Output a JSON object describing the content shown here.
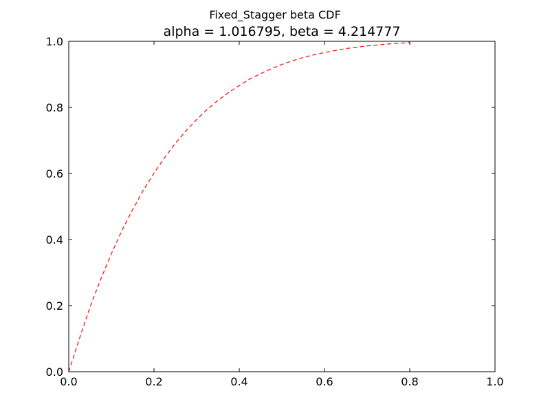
{
  "chart_data": {
    "type": "line",
    "suptitle": "Fixed_Stagger beta CDF",
    "title": "alpha = 1.016795, beta = 4.214777",
    "xlabel": "",
    "ylabel": "",
    "xlim": [
      0.0,
      1.0
    ],
    "ylim": [
      0.0,
      1.0
    ],
    "x_ticks": [
      "0.0",
      "0.2",
      "0.4",
      "0.6",
      "0.8",
      "1.0"
    ],
    "y_ticks": [
      "0.0",
      "0.2",
      "0.4",
      "0.6",
      "0.8",
      "1.0"
    ],
    "grid": false,
    "legend": "none",
    "x_range_plotted": [
      0.0,
      0.8
    ],
    "series": [
      {
        "line_style": "dashed",
        "color": "#ff0000",
        "x": [
          0.0,
          0.025,
          0.05,
          0.075,
          0.1,
          0.125,
          0.15,
          0.175,
          0.2,
          0.225,
          0.25,
          0.275,
          0.3,
          0.325,
          0.35,
          0.375,
          0.4,
          0.425,
          0.45,
          0.475,
          0.5,
          0.525,
          0.55,
          0.575,
          0.6,
          0.625,
          0.65,
          0.675,
          0.7,
          0.725,
          0.75,
          0.775,
          0.8
        ],
        "y": [
          0.0,
          0.1,
          0.196,
          0.28,
          0.357,
          0.428,
          0.491,
          0.549,
          0.601,
          0.648,
          0.691,
          0.729,
          0.763,
          0.794,
          0.821,
          0.845,
          0.866,
          0.886,
          0.902,
          0.917,
          0.93,
          0.941,
          0.951,
          0.959,
          0.966,
          0.972,
          0.978,
          0.982,
          0.986,
          0.989,
          0.992,
          0.994,
          0.996
        ]
      }
    ]
  }
}
